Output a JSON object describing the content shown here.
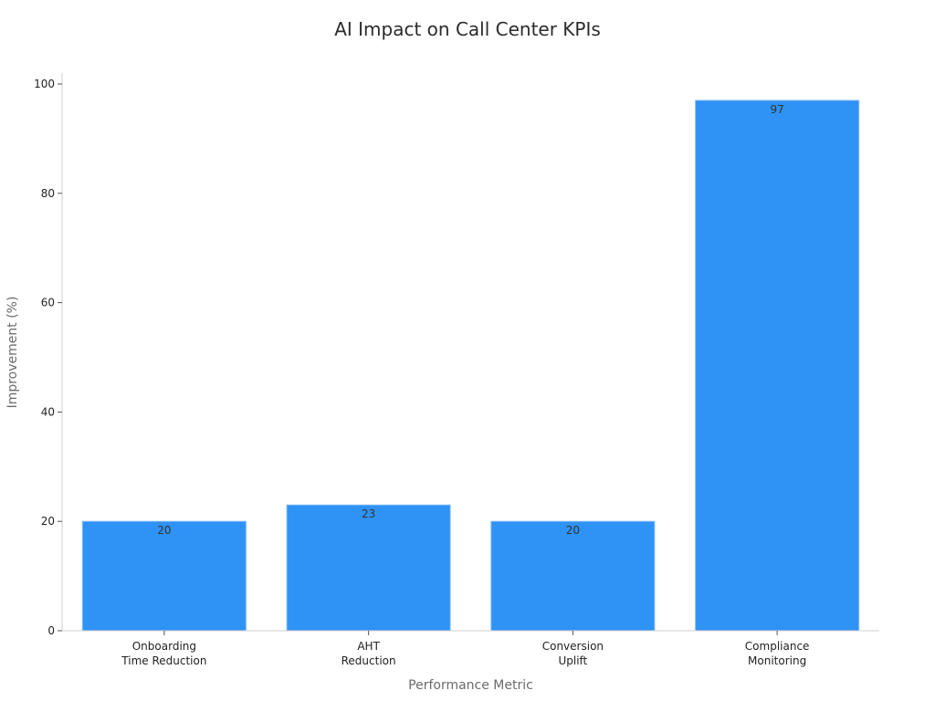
{
  "chart_data": {
    "type": "bar",
    "title": "AI Impact on Call Center KPIs",
    "xlabel": "Performance Metric",
    "ylabel": "Improvement (%)",
    "categories": [
      [
        "Onboarding",
        "Time Reduction"
      ],
      [
        "AHT",
        "Reduction"
      ],
      [
        "Conversion",
        "Uplift"
      ],
      [
        "Compliance",
        "Monitoring"
      ]
    ],
    "values": [
      20,
      23,
      20,
      97
    ],
    "ylim": [
      0,
      100
    ],
    "yticks": [
      0,
      20,
      40,
      60,
      80,
      100
    ],
    "bar_color": "#2f92f5",
    "grid": false,
    "legend": "none"
  }
}
